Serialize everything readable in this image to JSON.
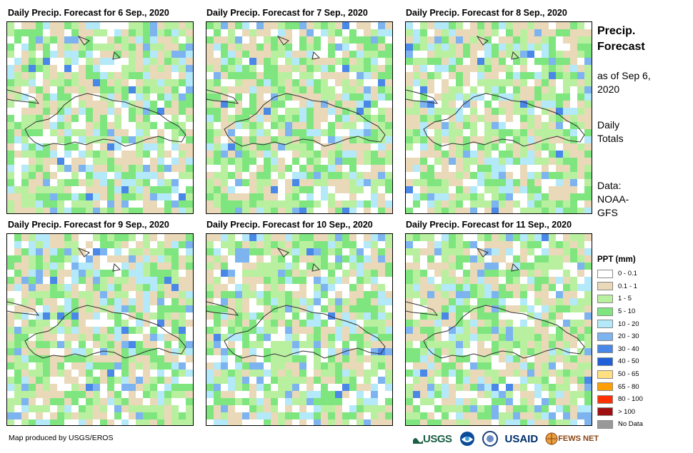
{
  "panels": [
    {
      "title": "Daily Precip. Forecast for 6 Sep., 2020",
      "seed": 6
    },
    {
      "title": "Daily Precip. Forecast for 7 Sep., 2020",
      "seed": 7
    },
    {
      "title": "Daily Precip. Forecast for 8 Sep., 2020",
      "seed": 8
    },
    {
      "title": "Daily Precip. Forecast for 9 Sep., 2020",
      "seed": 9
    },
    {
      "title": "Daily Precip. Forecast for 10 Sep., 2020",
      "seed": 10
    },
    {
      "title": "Daily Precip. Forecast for 11 Sep., 2020",
      "seed": 11
    }
  ],
  "side": {
    "title": "Precip. Forecast",
    "asof": "as of Sep 6, 2020",
    "totals": "Daily Totals",
    "data": "Data: NOAA-GFS"
  },
  "legend": {
    "title": "PPT (mm)",
    "items": [
      {
        "label": "0 - 0.1",
        "color": "#ffffff"
      },
      {
        "label": "0.1 - 1",
        "color": "#ead9b9"
      },
      {
        "label": "1 - 5",
        "color": "#b9f0a0"
      },
      {
        "label": "5 - 10",
        "color": "#7fe67f"
      },
      {
        "label": "10 - 20",
        "color": "#b3e9f8"
      },
      {
        "label": "20 - 30",
        "color": "#7db4f0"
      },
      {
        "label": "30 - 40",
        "color": "#4a88e8"
      },
      {
        "label": "40 - 50",
        "color": "#2060d8"
      },
      {
        "label": "50 - 65",
        "color": "#ffe080"
      },
      {
        "label": "65 - 80",
        "color": "#ffa000"
      },
      {
        "label": "80 - 100",
        "color": "#ff3000"
      },
      {
        "label": "> 100",
        "color": "#a01010"
      },
      {
        "label": "No Data",
        "color": "#999999"
      }
    ]
  },
  "credit": "Map produced by USGS/EROS",
  "logos": {
    "usgs": "USGS",
    "usaid": "USAID",
    "fews": "FEWS NET"
  }
}
